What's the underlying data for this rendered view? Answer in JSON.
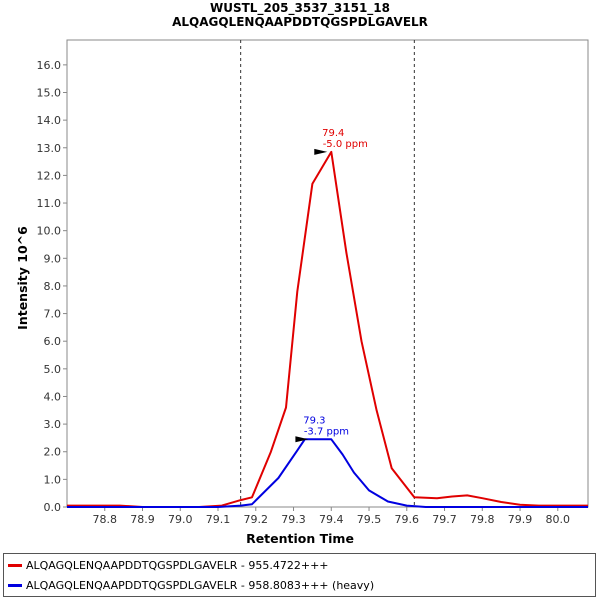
{
  "chart_data": {
    "type": "line",
    "title": "WUSTL_205_3537_3151_18",
    "subtitle": "ALQAGQLENQAAPDDTQGSPDLGAVELR",
    "xlabel": "Retention Time",
    "ylabel": "Intensity 10^6",
    "xlim": [
      78.7,
      80.08
    ],
    "ylim": [
      0,
      16.9
    ],
    "x_ticks": [
      "78.8",
      "78.9",
      "79.0",
      "79.1",
      "79.2",
      "79.3",
      "79.4",
      "79.5",
      "79.6",
      "79.7",
      "79.8",
      "79.9",
      "80.0"
    ],
    "y_ticks": [
      "0.0",
      "1.0",
      "2.0",
      "3.0",
      "4.0",
      "5.0",
      "6.0",
      "7.0",
      "8.0",
      "9.0",
      "10.0",
      "11.0",
      "12.0",
      "13.0",
      "14.0",
      "15.0",
      "16.0"
    ],
    "boundaries": [
      79.16,
      79.62
    ],
    "grid": false,
    "legend_position": "bottom",
    "series": [
      {
        "name": "ALQAGQLENQAAPDDTQGSPDLGAVELR - 955.4722+++",
        "color": "#e00000",
        "x": [
          78.7,
          78.84,
          78.9,
          79.0,
          79.05,
          79.11,
          79.16,
          79.19,
          79.24,
          79.28,
          79.31,
          79.35,
          79.4,
          79.44,
          79.48,
          79.52,
          79.56,
          79.62,
          79.68,
          79.72,
          79.76,
          79.8,
          79.85,
          79.9,
          79.95,
          80.0,
          80.08
        ],
        "y": [
          0.05,
          0.05,
          0.0,
          0.0,
          0.0,
          0.05,
          0.25,
          0.35,
          2.0,
          3.6,
          7.8,
          11.7,
          12.85,
          9.2,
          6.0,
          3.5,
          1.4,
          0.35,
          0.32,
          0.38,
          0.42,
          0.32,
          0.18,
          0.08,
          0.05,
          0.05,
          0.05
        ]
      },
      {
        "name": "ALQAGQLENQAAPDDTQGSPDLGAVELR - 958.8083+++ (heavy)",
        "color": "#0000e0",
        "x": [
          78.7,
          79.0,
          79.1,
          79.16,
          79.19,
          79.26,
          79.31,
          79.33,
          79.36,
          79.4,
          79.43,
          79.46,
          79.5,
          79.55,
          79.6,
          79.65,
          80.08
        ],
        "y": [
          0.0,
          0.0,
          0.0,
          0.05,
          0.1,
          1.05,
          2.05,
          2.45,
          2.45,
          2.45,
          1.9,
          1.25,
          0.6,
          0.2,
          0.05,
          0.0,
          0.0
        ]
      }
    ],
    "annotations": [
      {
        "x": 79.4,
        "y": 12.85,
        "series": 0,
        "rt_label": "79.4",
        "ppm_label": "-5.0 ppm",
        "color": "#e00000"
      },
      {
        "x": 79.35,
        "y": 2.45,
        "series": 1,
        "rt_label": "79.3",
        "ppm_label": "-3.7 ppm",
        "color": "#0000e0"
      }
    ]
  }
}
